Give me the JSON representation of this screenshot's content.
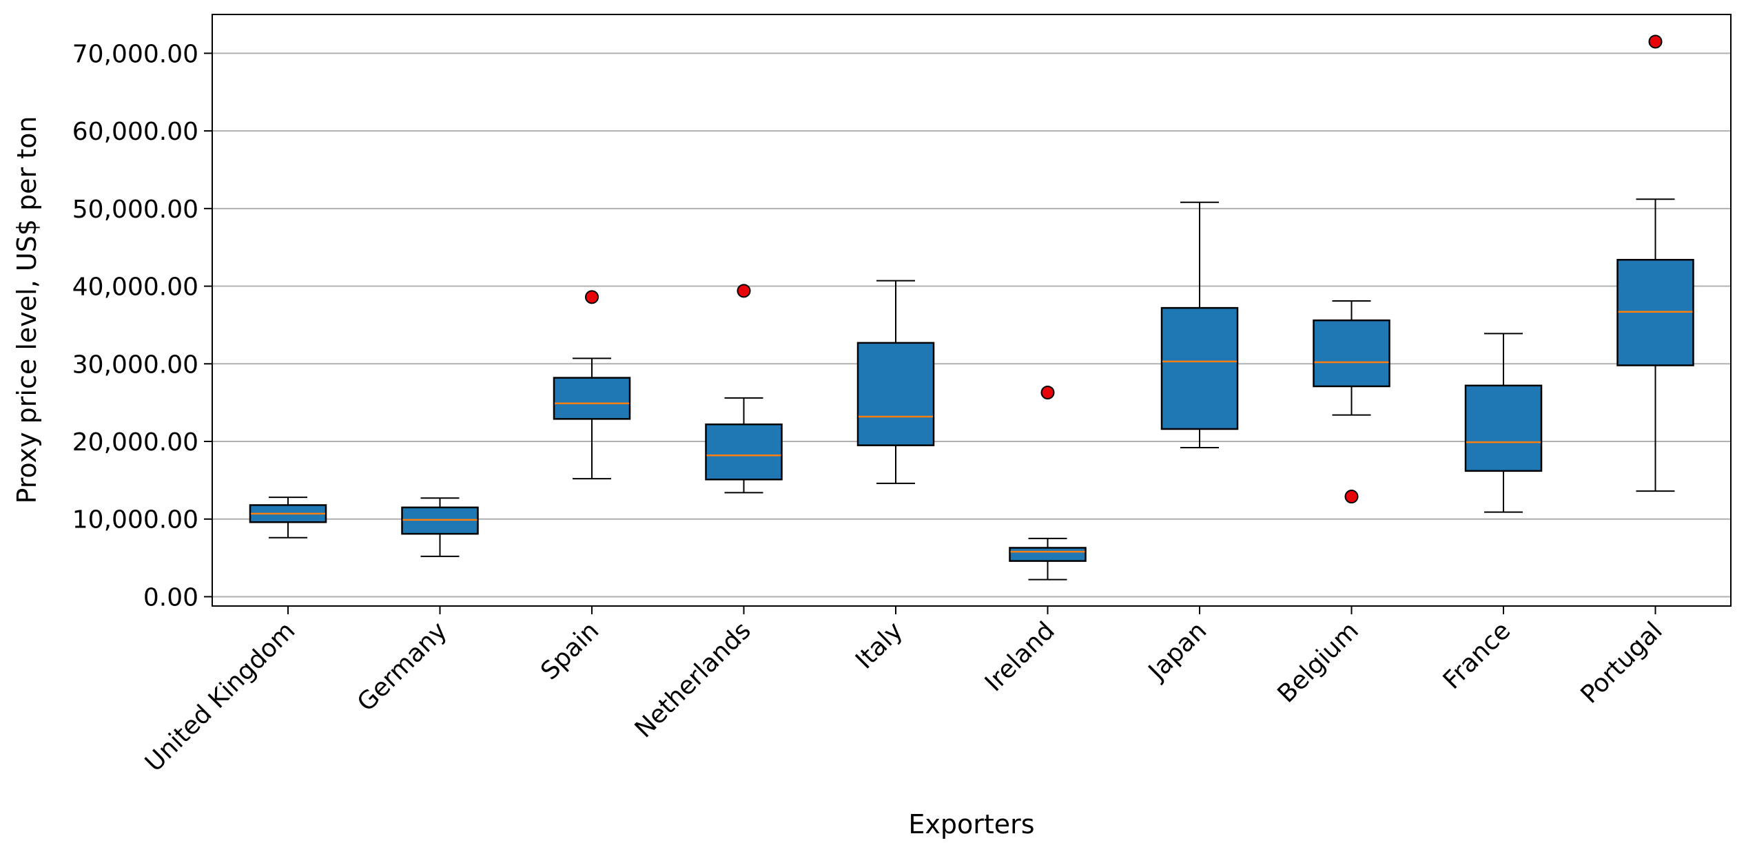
{
  "chart_data": {
    "type": "box",
    "xlabel": "Exporters",
    "ylabel": "Proxy price level, US$ per ton",
    "ylim": [
      -1200,
      75000
    ],
    "yticks": [
      0,
      10000,
      20000,
      30000,
      40000,
      50000,
      60000,
      70000
    ],
    "ytick_labels": [
      "0.00",
      "10,000.00",
      "20,000.00",
      "30,000.00",
      "40,000.00",
      "50,000.00",
      "60,000.00",
      "70,000.00"
    ],
    "grid": "horizontal",
    "colors": {
      "box_fill": "#1f77b4",
      "median": "#ff7f0e",
      "outlier_fill": "#e8050a",
      "grid": "#b0b0b0"
    },
    "categories": [
      "United Kingdom",
      "Germany",
      "Spain",
      "Netherlands",
      "Italy",
      "Ireland",
      "Japan",
      "Belgium",
      "France",
      "Portugal"
    ],
    "boxes": [
      {
        "category": "United Kingdom",
        "whisker_low": 7600,
        "q1": 9600,
        "median": 10700,
        "q3": 11800,
        "whisker_high": 12800,
        "outliers": []
      },
      {
        "category": "Germany",
        "whisker_low": 5200,
        "q1": 8100,
        "median": 9900,
        "q3": 11500,
        "whisker_high": 12700,
        "outliers": []
      },
      {
        "category": "Spain",
        "whisker_low": 15200,
        "q1": 22900,
        "median": 24900,
        "q3": 28200,
        "whisker_high": 30700,
        "outliers": [
          38600
        ]
      },
      {
        "category": "Netherlands",
        "whisker_low": 13400,
        "q1": 15100,
        "median": 18200,
        "q3": 22200,
        "whisker_high": 25600,
        "outliers": [
          39400
        ]
      },
      {
        "category": "Italy",
        "whisker_low": 14600,
        "q1": 19500,
        "median": 23200,
        "q3": 32700,
        "whisker_high": 40700,
        "outliers": []
      },
      {
        "category": "Ireland",
        "whisker_low": 2200,
        "q1": 4600,
        "median": 5800,
        "q3": 6300,
        "whisker_high": 7500,
        "outliers": [
          26300
        ]
      },
      {
        "category": "Japan",
        "whisker_low": 19200,
        "q1": 21600,
        "median": 30300,
        "q3": 37200,
        "whisker_high": 50800,
        "outliers": []
      },
      {
        "category": "Belgium",
        "whisker_low": 23400,
        "q1": 27100,
        "median": 30200,
        "q3": 35600,
        "whisker_high": 38100,
        "outliers": [
          12900
        ]
      },
      {
        "category": "France",
        "whisker_low": 10900,
        "q1": 16200,
        "median": 19900,
        "q3": 27200,
        "whisker_high": 33900,
        "outliers": []
      },
      {
        "category": "Portugal",
        "whisker_low": 13600,
        "q1": 29800,
        "median": 36700,
        "q3": 43400,
        "whisker_high": 51200,
        "outliers": [
          71500
        ]
      }
    ]
  }
}
